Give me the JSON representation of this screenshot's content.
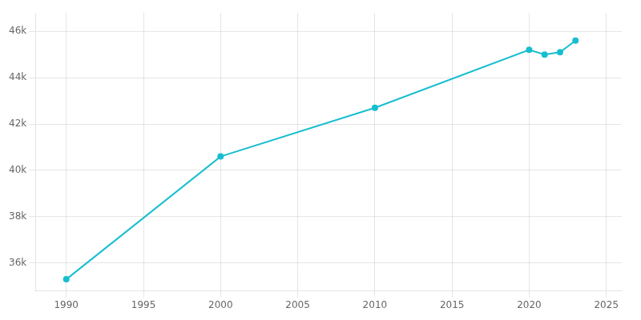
{
  "chart_data": {
    "type": "line",
    "x": [
      1990,
      2000,
      2010,
      2020,
      2021,
      2022,
      2023
    ],
    "values": [
      35300,
      40600,
      42700,
      45200,
      45000,
      45100,
      45600
    ],
    "color": "#17becf",
    "marker": "circle",
    "xlim": [
      1988,
      2026
    ],
    "ylim": [
      34800,
      46800
    ],
    "xticks": [
      1990,
      1995,
      2000,
      2005,
      2010,
      2015,
      2020,
      2025
    ],
    "yticks": [
      {
        "value": 36000,
        "label": "36k"
      },
      {
        "value": 38000,
        "label": "38k"
      },
      {
        "value": 40000,
        "label": "40k"
      },
      {
        "value": 42000,
        "label": "42k"
      },
      {
        "value": 44000,
        "label": "44k"
      },
      {
        "value": 46000,
        "label": "46k"
      }
    ],
    "grid": true
  }
}
